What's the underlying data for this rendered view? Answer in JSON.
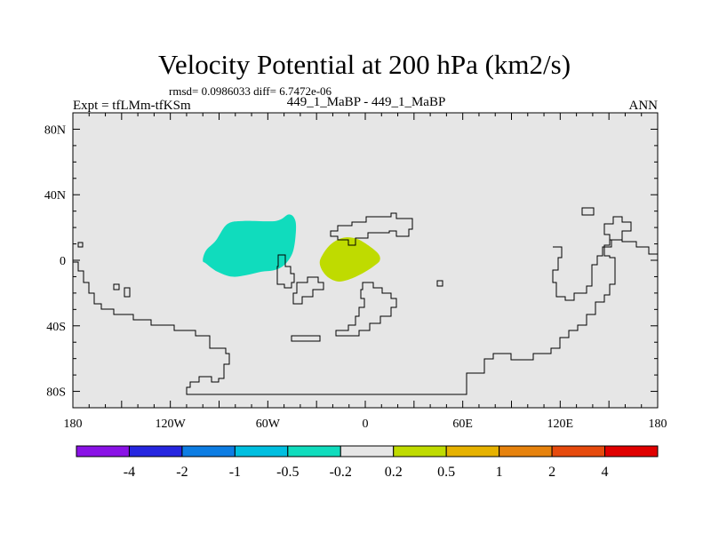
{
  "chart_data": {
    "type": "heatmap",
    "title": "Velocity Potential at 200 hPa (km2/s)",
    "stats_line": "rmsd= 0.0986033 diff= 6.7472e-06",
    "left_label": "Expt = tfLMm-tfKSm",
    "center_label": "449_1_MaBP - 449_1_MaBP",
    "right_label": "ANN",
    "xlabel": "",
    "ylabel": "",
    "xlim": [
      -180,
      180
    ],
    "ylim": [
      -90,
      90
    ],
    "x_ticks": [
      {
        "value": -180,
        "label": "180"
      },
      {
        "value": -120,
        "label": "120W"
      },
      {
        "value": -60,
        "label": "60W"
      },
      {
        "value": 0,
        "label": "0"
      },
      {
        "value": 60,
        "label": "60E"
      },
      {
        "value": 120,
        "label": "120E"
      },
      {
        "value": 180,
        "label": "180"
      }
    ],
    "y_ticks": [
      {
        "value": 80,
        "label": "80N"
      },
      {
        "value": 40,
        "label": "40N"
      },
      {
        "value": 0,
        "label": "0"
      },
      {
        "value": -40,
        "label": "40S"
      },
      {
        "value": -80,
        "label": "80S"
      }
    ],
    "background_level": "-0.2 to 0.2",
    "anomaly_regions": [
      {
        "name": "negative-anomaly",
        "level": "-0.5 to -0.2",
        "color": "#10dcbd",
        "outline": [
          [
            -100,
            0
          ],
          [
            -98,
            6
          ],
          [
            -92,
            12
          ],
          [
            -85,
            22
          ],
          [
            -75,
            24
          ],
          [
            -55,
            24
          ],
          [
            -47,
            28
          ],
          [
            -43,
            24
          ],
          [
            -43,
            14
          ],
          [
            -45,
            4
          ],
          [
            -50,
            -3
          ],
          [
            -56,
            -6
          ],
          [
            -64,
            -7
          ],
          [
            -73,
            -9
          ],
          [
            -82,
            -10
          ],
          [
            -91,
            -7
          ],
          [
            -98,
            -2
          ]
        ]
      },
      {
        "name": "positive-anomaly",
        "level": "0.2 to 0.5",
        "color": "#bfdb00",
        "outline": [
          [
            -28,
            -2
          ],
          [
            -27,
            2
          ],
          [
            -23,
            8
          ],
          [
            -18,
            12
          ],
          [
            -12,
            14
          ],
          [
            -5,
            13
          ],
          [
            2,
            9
          ],
          [
            8,
            4
          ],
          [
            9,
            0
          ],
          [
            6,
            -3
          ],
          [
            0,
            -7
          ],
          [
            -8,
            -11
          ],
          [
            -16,
            -13
          ],
          [
            -22,
            -11
          ],
          [
            -26,
            -7
          ]
        ]
      }
    ],
    "colorbar": {
      "colors": [
        "#8a12e6",
        "#2626e0",
        "#0d7de3",
        "#00bfe0",
        "#10dcbd",
        "#e6e6e6",
        "#bfdb00",
        "#e6b200",
        "#e6820d",
        "#e64a0d",
        "#e00000"
      ],
      "labels": [
        "-4",
        "-2",
        "-1",
        "-0.5",
        "-0.2",
        "0.2",
        "0.5",
        "1",
        "2",
        "4"
      ]
    }
  }
}
